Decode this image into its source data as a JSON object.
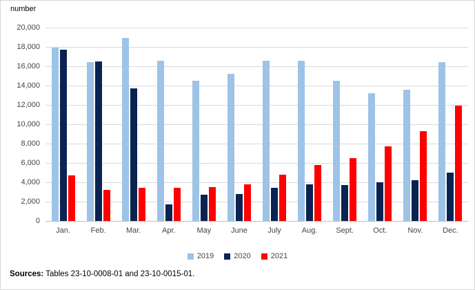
{
  "page": {
    "axis_unit_label": "number",
    "sources_label": "Sources:",
    "sources_text": " Tables 23-10-0008-01 and 23-10-0015-01."
  },
  "chart_data": {
    "type": "bar",
    "title": "",
    "xlabel": "",
    "ylabel": "number",
    "ylim": [
      0,
      20000
    ],
    "ytick_step": 2000,
    "grid": true,
    "legend_position": "bottom",
    "y_tick_labels": [
      "0",
      "2,000",
      "4,000",
      "6,000",
      "8,000",
      "10,000",
      "12,000",
      "14,000",
      "16,000",
      "18,000",
      "20,000"
    ],
    "categories": [
      "Jan.",
      "Feb.",
      "Mar.",
      "Apr.",
      "May",
      "June",
      "July",
      "Aug.",
      "Sept.",
      "Oct.",
      "Nov.",
      "Dec."
    ],
    "series": [
      {
        "name": "2019",
        "color": "#9DC3E6",
        "values": [
          17900,
          16400,
          18900,
          16600,
          14500,
          15200,
          16600,
          16600,
          14500,
          13200,
          13600,
          16400
        ]
      },
      {
        "name": "2020",
        "color": "#0A2351",
        "values": [
          17700,
          16500,
          13700,
          1700,
          2700,
          2800,
          3400,
          3800,
          3700,
          4000,
          4200,
          5000
        ]
      },
      {
        "name": "2021",
        "color": "#FE0000",
        "values": [
          4700,
          3200,
          3400,
          3400,
          3500,
          3800,
          4800,
          5800,
          6500,
          7700,
          9300,
          11900
        ]
      }
    ]
  }
}
